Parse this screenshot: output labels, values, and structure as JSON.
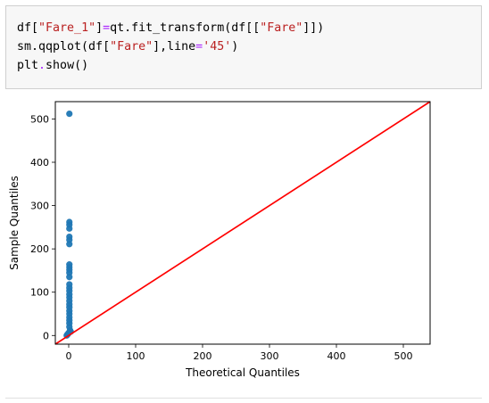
{
  "code_cell": {
    "lines": [
      [
        {
          "t": "df[",
          "c": "plain"
        },
        {
          "t": "\"Fare_1\"",
          "c": "s"
        },
        {
          "t": "]",
          "c": "plain"
        },
        {
          "t": "=",
          "c": "o"
        },
        {
          "t": "qt.fit_transform(df[[",
          "c": "plain"
        },
        {
          "t": "\"Fare\"",
          "c": "s"
        },
        {
          "t": "]])",
          "c": "plain"
        }
      ],
      [
        {
          "t": "sm.qqplot(df[",
          "c": "plain"
        },
        {
          "t": "\"Fare\"",
          "c": "s"
        },
        {
          "t": "],line",
          "c": "plain"
        },
        {
          "t": "=",
          "c": "o"
        },
        {
          "t": "'45'",
          "c": "s"
        },
        {
          "t": ")",
          "c": "plain"
        }
      ],
      [
        {
          "t": "plt",
          "c": "plain"
        },
        {
          "t": ".",
          "c": "o"
        },
        {
          "t": "show()",
          "c": "plain"
        }
      ]
    ]
  },
  "chart_data": {
    "type": "scatter",
    "title": "",
    "xlabel": "Theoretical Quantiles",
    "ylabel": "Sample Quantiles",
    "xlim": [
      -20,
      540
    ],
    "ylim": [
      -20,
      540
    ],
    "xticks": [
      0,
      100,
      200,
      300,
      400,
      500
    ],
    "yticks": [
      0,
      100,
      200,
      300,
      400,
      500
    ],
    "grid": false,
    "reference_line": {
      "label": "45-degree line",
      "color": "#ff0000"
    },
    "marker_color": "#1f77b4",
    "points": [
      {
        "x": -3,
        "y": 0
      },
      {
        "x": -2,
        "y": 2
      },
      {
        "x": -1,
        "y": 4
      },
      {
        "x": 0,
        "y": 6
      },
      {
        "x": 1,
        "y": 8
      },
      {
        "x": 2,
        "y": 12
      },
      {
        "x": 3,
        "y": 9
      },
      {
        "x": 1,
        "y": 20
      },
      {
        "x": 1,
        "y": 28
      },
      {
        "x": 1,
        "y": 35
      },
      {
        "x": 1,
        "y": 42
      },
      {
        "x": 1,
        "y": 50
      },
      {
        "x": 1,
        "y": 57
      },
      {
        "x": 1,
        "y": 65
      },
      {
        "x": 1,
        "y": 72
      },
      {
        "x": 1,
        "y": 80
      },
      {
        "x": 1,
        "y": 88
      },
      {
        "x": 1,
        "y": 95
      },
      {
        "x": 1,
        "y": 103
      },
      {
        "x": 1,
        "y": 110
      },
      {
        "x": 1,
        "y": 118
      },
      {
        "x": 1,
        "y": 135
      },
      {
        "x": 1,
        "y": 145
      },
      {
        "x": 1,
        "y": 152
      },
      {
        "x": 1,
        "y": 158
      },
      {
        "x": 1,
        "y": 164
      },
      {
        "x": 1,
        "y": 211
      },
      {
        "x": 1,
        "y": 221
      },
      {
        "x": 1,
        "y": 228
      },
      {
        "x": 1,
        "y": 247
      },
      {
        "x": 1,
        "y": 256
      },
      {
        "x": 1,
        "y": 262
      },
      {
        "x": 1,
        "y": 512
      }
    ]
  }
}
